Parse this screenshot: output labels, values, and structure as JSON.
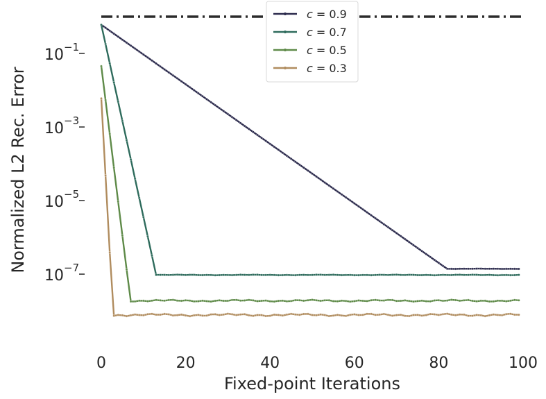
{
  "chart_data": {
    "type": "line",
    "xlabel": "Fixed-point Iterations",
    "ylabel": "Normalized L2 Rec. Error",
    "x_range": [
      0,
      100
    ],
    "y_range": [
      2.5e-09,
      2.0
    ],
    "y_scale": "log",
    "grid": false,
    "legend": "top-center",
    "x_ticks": [
      {
        "value": 0,
        "label": "0"
      },
      {
        "value": 20,
        "label": "20"
      },
      {
        "value": 40,
        "label": "40"
      },
      {
        "value": 60,
        "label": "60"
      },
      {
        "value": 80,
        "label": "80"
      },
      {
        "value": 100,
        "label": "100"
      }
    ],
    "y_ticks": [
      {
        "value": 0.1,
        "base": "10",
        "exp": "−1"
      },
      {
        "value": 0.001,
        "base": "10",
        "exp": "−3"
      },
      {
        "value": 1e-05,
        "base": "10",
        "exp": "−5"
      },
      {
        "value": 1e-07,
        "base": "10",
        "exp": "−7"
      }
    ],
    "reference_line": {
      "y": 1.0,
      "style": "dash-dot",
      "color": "#2b2b2b"
    },
    "series": [
      {
        "name": "c = 0.9",
        "var": "c",
        "eq": " = 0.9",
        "color": "#2b2a4c",
        "y0": 0.6,
        "rate": 0.83,
        "floor": 1.4e-07,
        "jitter": 0.01
      },
      {
        "name": "c = 0.7",
        "var": "c",
        "eq": " = 0.7",
        "color": "#2e6b5c",
        "y0": 0.6,
        "rate": 0.3,
        "floor": 9.5e-08,
        "jitter": 0.02
      },
      {
        "name": "c = 0.5",
        "var": "c",
        "eq": " = 0.5",
        "color": "#5e8a48",
        "y0": 0.045,
        "rate": 0.12,
        "floor": 1.9e-08,
        "jitter": 0.06
      },
      {
        "name": "c = 0.3",
        "var": "c",
        "eq": " = 0.3",
        "color": "#b08c5e",
        "y0": 0.006,
        "rate": 0.008,
        "floor": 7.8e-09,
        "jitter": 0.08
      }
    ]
  }
}
